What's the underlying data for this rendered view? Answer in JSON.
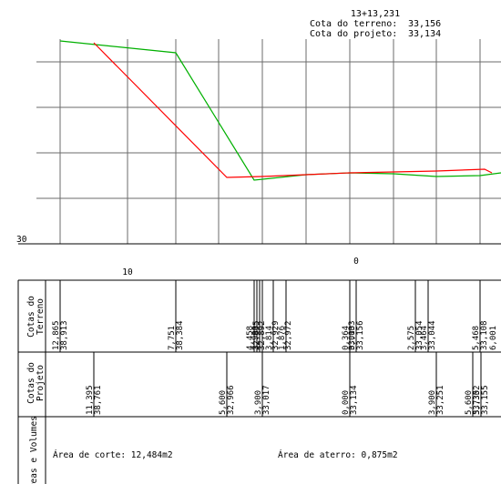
{
  "station": {
    "station_label": "13+13,231",
    "terrain_label": "Cota do terreno:",
    "terrain_value": "33,156",
    "project_label": "Cota do projeto:",
    "project_value": "33,134"
  },
  "axis": {
    "y_label": "30",
    "x_tick_left": "10",
    "x_tick_center": "0"
  },
  "rows": {
    "terrain_header": [
      "Cotas do",
      "Terreno"
    ],
    "project_header": [
      "Cotas do",
      "Projeto"
    ],
    "areas_header": [
      "Áreas e Volumes"
    ]
  },
  "terrain_values": [
    {
      "offset": "12,865",
      "elev": "38,913"
    },
    {
      "offset": "7,751",
      "elev": "38,384"
    },
    {
      "offset": "4,458",
      "elev": "32,835"
    },
    {
      "offset": "3,900",
      "elev": "32,892"
    },
    {
      "offset": "3,814",
      "elev": "32,929"
    },
    {
      "offset": "1,876",
      "elev": "32,972"
    },
    {
      "offset": "0,364",
      "elev": "33,133"
    },
    {
      "offset": "0,000",
      "elev": "33,156"
    },
    {
      "offset": "2,575",
      "elev": "33,054"
    },
    {
      "offset": "3,464",
      "elev": "33,044"
    },
    {
      "offset": "5,468",
      "elev": "33,108"
    },
    {
      "offset": "6,001",
      "elev": ""
    }
  ],
  "project_values": [
    {
      "offset": "11,395",
      "elev": "38,761"
    },
    {
      "offset": "5,600",
      "elev": "32,966"
    },
    {
      "offset": "3,900",
      "elev": "33,017"
    },
    {
      "offset": "0,000",
      "elev": "33,134"
    },
    {
      "offset": "3,900",
      "elev": "33,251"
    },
    {
      "offset": "5,600",
      "elev": "33,302"
    },
    {
      "offset": "5,735",
      "elev": "33,155"
    }
  ],
  "areas": {
    "cut_label": "Área de corte: 12,484m2",
    "fill_label": "Área de aterro: 0,875m2"
  },
  "colors": {
    "terrain_line": "#00b000",
    "project_line": "#ff0000",
    "grid": "#6b6b6b"
  }
}
